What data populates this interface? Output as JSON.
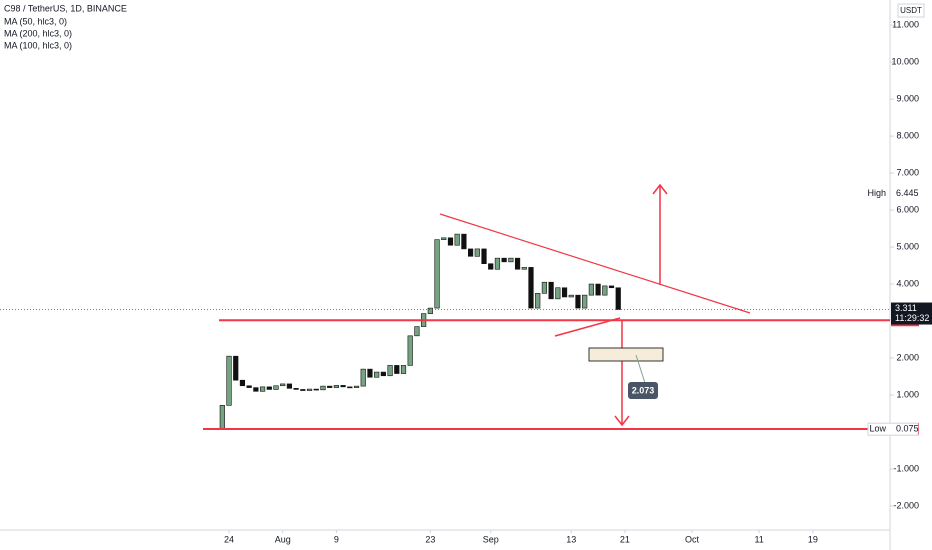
{
  "chart_data": {
    "type": "candlestick",
    "title": "C98 / TetherUS, 1D, BINANCE",
    "indicators": [
      "MA (50, hlc3, 0)",
      "MA (200, hlc3, 0)",
      "MA (100, hlc3, 0)"
    ],
    "currency": "USDT",
    "up_color": "#76a382",
    "down_color": "#111111",
    "x": [
      -1,
      0,
      1,
      2,
      3,
      4,
      5,
      6,
      7,
      8,
      9,
      10,
      11,
      12,
      13,
      14,
      15,
      16,
      17,
      18,
      19,
      20,
      21,
      22,
      23,
      24,
      25,
      26,
      27,
      28,
      29,
      30,
      31,
      32,
      33,
      34,
      35,
      36,
      37,
      38,
      39,
      40,
      41,
      42,
      43,
      44,
      45,
      46,
      47,
      48,
      49,
      50,
      51,
      52,
      53,
      54,
      55,
      56,
      57,
      58
    ],
    "open": [
      0.1,
      0.72,
      2.05,
      1.4,
      1.25,
      1.2,
      1.1,
      1.22,
      1.15,
      1.25,
      1.3,
      1.18,
      1.15,
      1.12,
      1.16,
      1.14,
      1.24,
      1.2,
      1.26,
      1.22,
      1.2,
      1.24,
      1.7,
      1.48,
      1.62,
      1.52,
      1.8,
      1.58,
      1.8,
      2.6,
      2.85,
      3.2,
      3.35,
      5.2,
      5.25,
      5.05,
      5.35,
      4.95,
      4.75,
      4.95,
      4.55,
      4.4,
      4.7,
      4.6,
      4.7,
      4.4,
      4.45,
      3.35,
      3.75,
      4.05,
      3.6,
      3.9,
      3.65,
      3.7,
      3.35,
      3.7,
      4.0,
      3.7,
      3.95,
      3.9
    ],
    "high": {
      "label": "High",
      "value": 6.445
    },
    "low": {
      "label": "Low",
      "value": 0.075
    },
    "close": [
      0.72,
      2.05,
      1.4,
      1.25,
      1.2,
      1.1,
      1.22,
      1.15,
      1.25,
      1.3,
      1.18,
      1.15,
      1.12,
      1.16,
      1.14,
      1.24,
      1.2,
      1.26,
      1.22,
      1.2,
      1.24,
      1.7,
      1.48,
      1.62,
      1.52,
      1.8,
      1.58,
      1.8,
      2.6,
      2.85,
      3.2,
      3.35,
      5.2,
      5.25,
      5.05,
      5.35,
      4.95,
      4.75,
      4.95,
      4.55,
      4.4,
      4.7,
      4.6,
      4.7,
      4.4,
      4.45,
      3.35,
      3.75,
      4.05,
      3.6,
      3.9,
      3.65,
      3.7,
      3.35,
      3.7,
      4.0,
      3.7,
      3.95,
      3.9,
      3.311
    ],
    "xlim": [
      -34.13,
      98.5
    ],
    "xticks": [
      {
        "value": 0,
        "label": "24"
      },
      {
        "value": 8,
        "label": "Aug"
      },
      {
        "value": 16,
        "label": "9"
      },
      {
        "value": 30,
        "label": "23"
      },
      {
        "value": 39,
        "label": "Sep"
      },
      {
        "value": 51,
        "label": "13"
      },
      {
        "value": 59,
        "label": "21"
      },
      {
        "value": 69,
        "label": "Oct"
      },
      {
        "value": 79,
        "label": "11"
      },
      {
        "value": 87,
        "label": "19"
      }
    ],
    "ylim": [
      -2.65,
      11.68
    ],
    "yticks": [
      {
        "value": 11,
        "label": "11.000"
      },
      {
        "value": 10,
        "label": "10.000"
      },
      {
        "value": 9,
        "label": "9.000"
      },
      {
        "value": 8,
        "label": "8.000"
      },
      {
        "value": 7,
        "label": "7.000"
      },
      {
        "value": 6,
        "label": "6.000"
      },
      {
        "value": 5,
        "label": "5.000"
      },
      {
        "value": 4,
        "label": "4.000"
      },
      {
        "value": 2,
        "label": "2.000"
      },
      {
        "value": 1,
        "label": "1.000"
      },
      {
        "value": -1,
        "label": "-1.000"
      },
      {
        "value": -2,
        "label": "-2.000"
      }
    ],
    "last_price": 3.311,
    "countdown": "11:29:32",
    "levels": [
      3.021,
      0.082
    ],
    "level_color": "#f23645",
    "callout": 2.073
  }
}
